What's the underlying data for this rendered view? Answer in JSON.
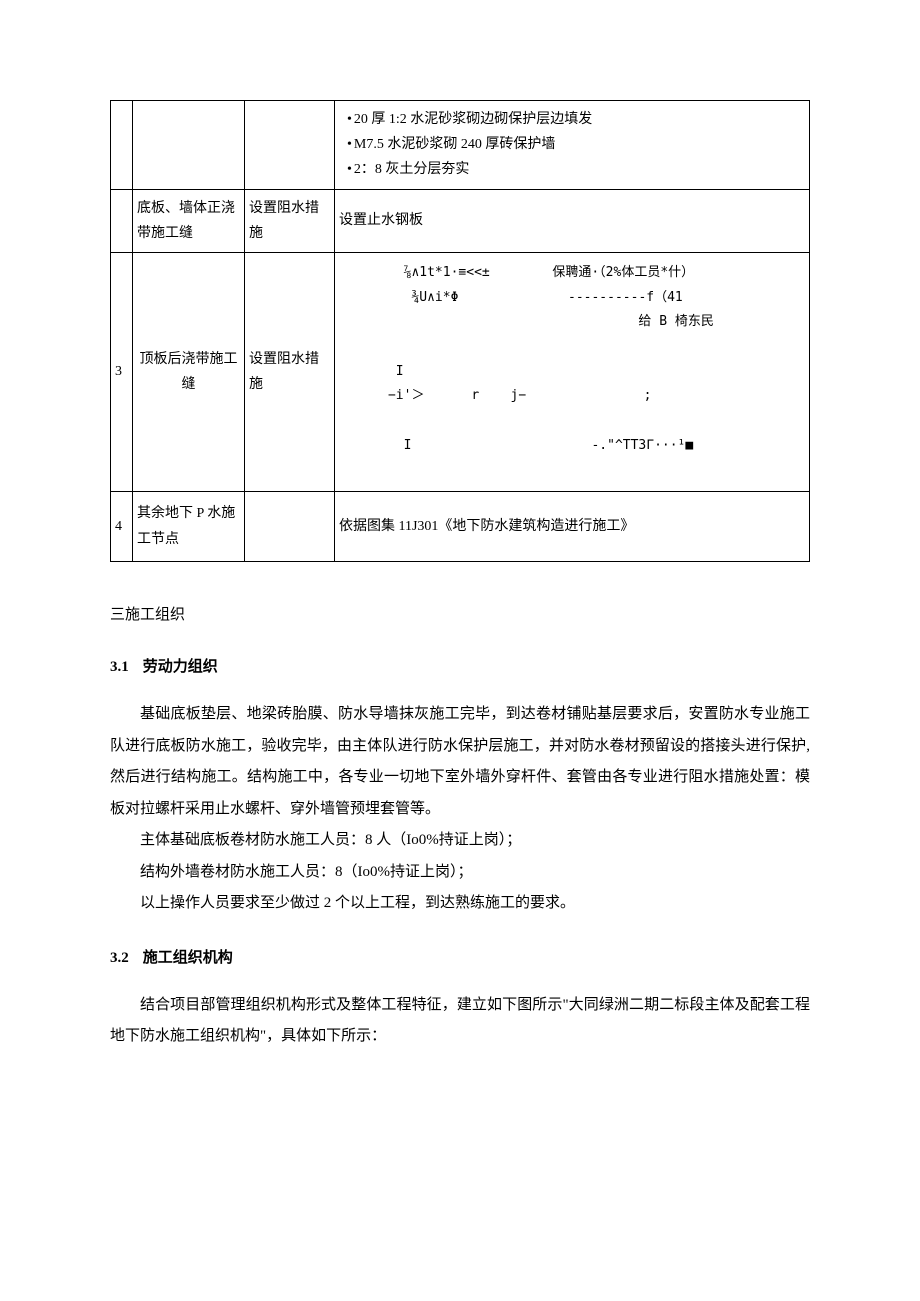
{
  "table": {
    "rows": [
      {
        "num": "",
        "name": "",
        "measure": "",
        "detail_lines": [
          "20 厚 1:2 水泥砂浆砌边砌保护层边填发",
          "M7.5 水泥砂浆砌 240 厚砖保护墙",
          "2：8 灰土分层夯实"
        ]
      },
      {
        "num": "",
        "name": "底板、墙体正浇带施工缝",
        "measure": "设置阻水措施",
        "detail": "设置止水钢板"
      },
      {
        "num": "3",
        "name": "顶板后浇带施工缝",
        "measure": "设置阻水措施",
        "diagram": {
          "line1_left": "⅞∧1t*1·≡<<±",
          "line1_right": "保聘通·（2%体工员*什）",
          "line2_left": "¾U∧i*Φ",
          "line2_mid": "----------f（41",
          "line3_right": "给 B 椅东民",
          "line4": "I",
          "line5": "−i'＞      r    j−               ;",
          "line6": "I                       -.\"^TT3Γ···¹■"
        }
      },
      {
        "num": "4",
        "name": "其余地下 P 水施工节点",
        "measure": "",
        "detail": "依据图集 11J301《地下防水建筑构造进行施工》"
      }
    ]
  },
  "section3_title": "三施工组织",
  "section3_1": {
    "num": "3.1",
    "title": "劳动力组织",
    "p1": "基础底板垫层、地梁砖胎膜、防水导墙抹灰施工完毕，到达卷材铺贴基层要求后，安置防水专业施工队进行底板防水施工，验收完毕，由主体队进行防水保护层施工，并对防水卷材预留设的搭接头进行保护,然后进行结构施工。结构施工中，各专业一切地下室外墙外穿杆件、套管由各专业进行阻水措施处置：模板对拉螺杆采用止水螺杆、穿外墙管预埋套管等。",
    "p2": "主体基础底板卷材防水施工人员：8 人（Io0%持证上岗）；",
    "p3": "结构外墙卷材防水施工人员：8（Io0%持证上岗）；",
    "p4": "以上操作人员要求至少做过 2 个以上工程，到达熟练施工的要求。"
  },
  "section3_2": {
    "num": "3.2",
    "title": "施工组织机构",
    "p1": "结合项目部管理组织机构形式及整体工程特征，建立如下图所示\"大同绿洲二期二标段主体及配套工程地下防水施工组织机构\"，具体如下所示："
  }
}
